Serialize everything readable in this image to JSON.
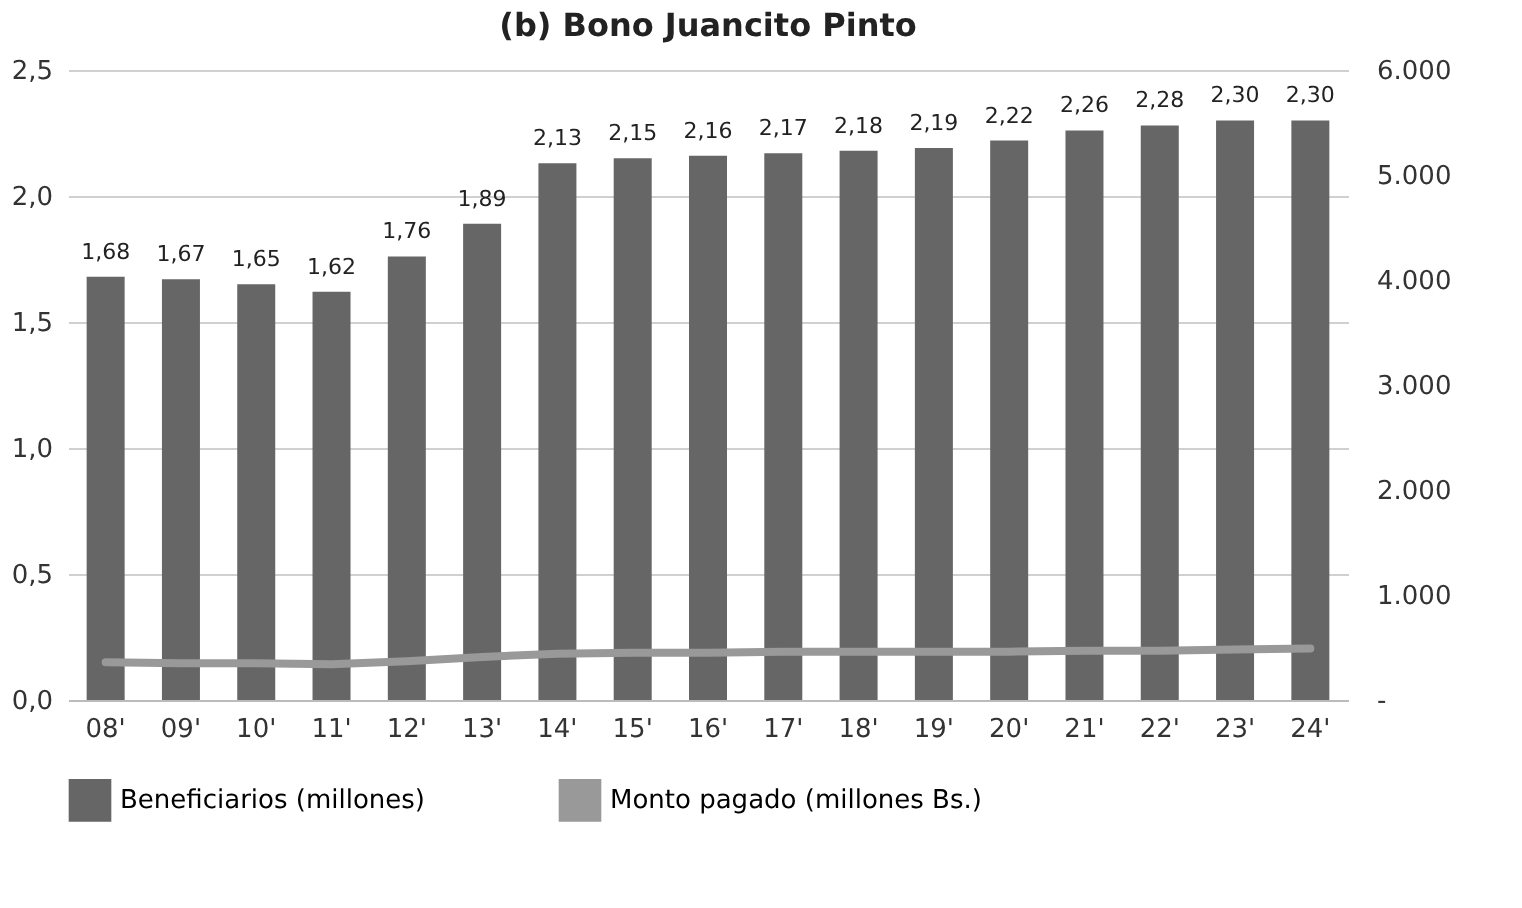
{
  "chart_data": {
    "type": "bar",
    "title": "(b) Bono Juancito Pinto",
    "categories": [
      "08'",
      "09'",
      "10'",
      "11'",
      "12'",
      "13'",
      "14'",
      "15'",
      "16'",
      "17'",
      "18'",
      "19'",
      "20'",
      "21'",
      "22'",
      "23'",
      "24'"
    ],
    "series": [
      {
        "name": "Beneficiarios (millones)",
        "color": "#666666",
        "values": [
          1.68,
          1.67,
          1.65,
          1.62,
          1.76,
          1.89,
          2.13,
          2.15,
          2.16,
          2.17,
          2.18,
          2.19,
          2.22,
          2.26,
          2.28,
          2.3,
          2.3
        ],
        "value_labels": [
          "1,68",
          "1,67",
          "1,65",
          "1,62",
          "1,76",
          "1,89",
          "2,13",
          "2,15",
          "2,16",
          "2,17",
          "2,18",
          "2,19",
          "2,22",
          "2,26",
          "2,28",
          "2,30",
          "2,30"
        ]
      },
      {
        "name": "Monto pagado (millones Bs.)",
        "type": "line",
        "axis": "y2",
        "color": "#999999",
        "values": [
          360,
          350,
          350,
          340,
          370,
          410,
          440,
          450,
          450,
          460,
          460,
          460,
          460,
          470,
          470,
          480,
          490
        ]
      }
    ],
    "ylim": [
      0,
      2.5
    ],
    "yticks": [
      {
        "value": 0,
        "label": "0,0"
      },
      {
        "value": 0.5,
        "label": "0,5"
      },
      {
        "value": 1,
        "label": "1,0"
      },
      {
        "value": 1.5,
        "label": "1,5"
      },
      {
        "value": 2,
        "label": "2,0"
      },
      {
        "value": 2.5,
        "label": "2,5"
      }
    ],
    "y2lim": [
      0,
      6000
    ],
    "y2ticks": [
      {
        "value": 0,
        "label": "-"
      },
      {
        "value": 1000,
        "label": "1.000"
      },
      {
        "value": 2000,
        "label": "2.000"
      },
      {
        "value": 3000,
        "label": "3.000"
      },
      {
        "value": 4000,
        "label": "4.000"
      },
      {
        "value": 5000,
        "label": "5.000"
      },
      {
        "value": 6000,
        "label": "6.000"
      }
    ],
    "grid": "y",
    "legend": "bottom"
  }
}
